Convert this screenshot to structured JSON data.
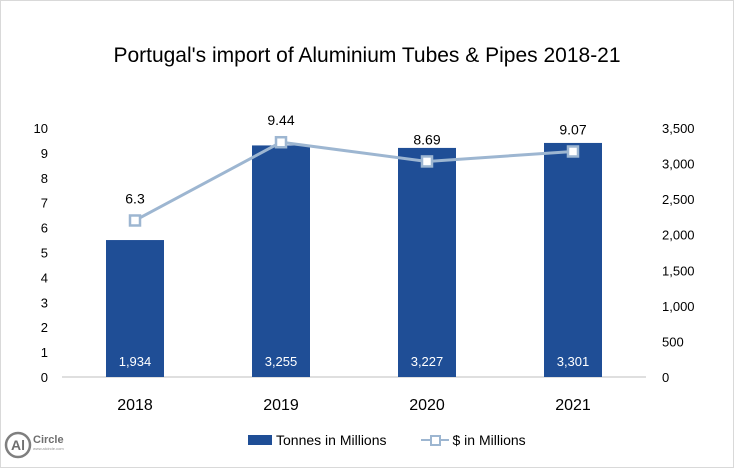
{
  "chart_data": {
    "type": "bar",
    "title": "Portugal's import of Aluminium Tubes & Pipes 2018-21",
    "categories": [
      "2018",
      "2019",
      "2020",
      "2021"
    ],
    "series": [
      {
        "name": "Tonnes in Millions",
        "kind": "bar",
        "axis": "left",
        "color": "#1f4e96",
        "values": [
          5.5,
          9.3,
          9.2,
          9.4
        ],
        "labels": [
          "1,934",
          "3,255",
          "3,227",
          "3,301"
        ]
      },
      {
        "name": "$ in Millions",
        "kind": "line",
        "axis": "right",
        "color": "#9db6d1",
        "values": [
          2200,
          3300,
          3030,
          3170
        ],
        "labels": [
          "6.3",
          "9.44",
          "8.69",
          "9.07"
        ]
      }
    ],
    "y_left": {
      "lim": [
        0,
        10
      ],
      "ticks": [
        "0",
        "1",
        "2",
        "3",
        "4",
        "5",
        "6",
        "7",
        "8",
        "9",
        "10"
      ]
    },
    "y_right": {
      "lim": [
        0,
        3500
      ],
      "ticks": [
        "0",
        "500",
        "1,000",
        "1,500",
        "2,000",
        "2,500",
        "3,000",
        "3,500"
      ]
    },
    "grid": false,
    "legend": "bottom"
  },
  "logo": {
    "text": "Al",
    "brand": "Circle",
    "tagline": "www.alcircle.com"
  }
}
